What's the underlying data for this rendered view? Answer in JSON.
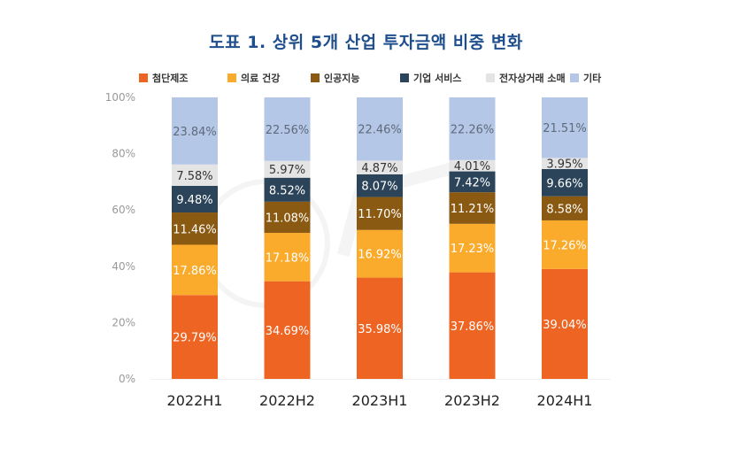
{
  "chart_data": {
    "type": "bar",
    "stacked": true,
    "title": "도표 1. 상위 5개 산업 투자금액 비중 변화",
    "xlabel": "",
    "ylabel": "",
    "ylim": [
      0,
      100
    ],
    "yticks": [
      "0%",
      "20%",
      "40%",
      "60%",
      "80%",
      "100%"
    ],
    "ytick_values": [
      0,
      20,
      40,
      60,
      80,
      100
    ],
    "grid": false,
    "legend_position": "top",
    "categories": [
      "2022H1",
      "2022H2",
      "2023H1",
      "2023H2",
      "2024H1"
    ],
    "series": [
      {
        "name": "첨단제조",
        "color": "#ee6523",
        "label_color": "#ffffff",
        "values": [
          29.79,
          34.69,
          35.98,
          37.86,
          39.04
        ],
        "labels": [
          "29.79%",
          "34.69%",
          "35.98%",
          "37.86%",
          "39.04%"
        ]
      },
      {
        "name": "의료 건강",
        "color": "#fbab2c",
        "label_color": "#ffffff",
        "values": [
          17.86,
          17.18,
          16.92,
          17.23,
          17.26
        ],
        "labels": [
          "17.86%",
          "17.18%",
          "16.92%",
          "17.23%",
          "17.26%"
        ]
      },
      {
        "name": "인공지능",
        "color": "#8b5a12",
        "label_color": "#ffffff",
        "values": [
          11.46,
          11.08,
          11.7,
          11.21,
          8.58
        ],
        "labels": [
          "11.46%",
          "11.08%",
          "11.70%",
          "11.21%",
          "8.58%"
        ]
      },
      {
        "name": "기업 서비스",
        "color": "#2b4459",
        "label_color": "#ffffff",
        "values": [
          9.48,
          8.52,
          8.07,
          7.42,
          9.66
        ],
        "labels": [
          "9.48%",
          "8.52%",
          "8.07%",
          "7.42%",
          "9.66%"
        ]
      },
      {
        "name": "전자상거래 소매",
        "color": "#e4e4e4",
        "label_color": "#333333",
        "values": [
          7.58,
          5.97,
          4.87,
          4.01,
          3.95
        ],
        "labels": [
          "7.58%",
          "5.97%",
          "4.87%",
          "4.01%",
          "3.95%"
        ]
      },
      {
        "name": "기타",
        "color": "#b4c7e7",
        "label_color": "#5f6b7a",
        "values": [
          23.84,
          22.56,
          22.46,
          22.26,
          21.51
        ],
        "labels": [
          "23.84%",
          "22.56%",
          "22.46%",
          "22.26%",
          "21.51%"
        ]
      }
    ]
  }
}
